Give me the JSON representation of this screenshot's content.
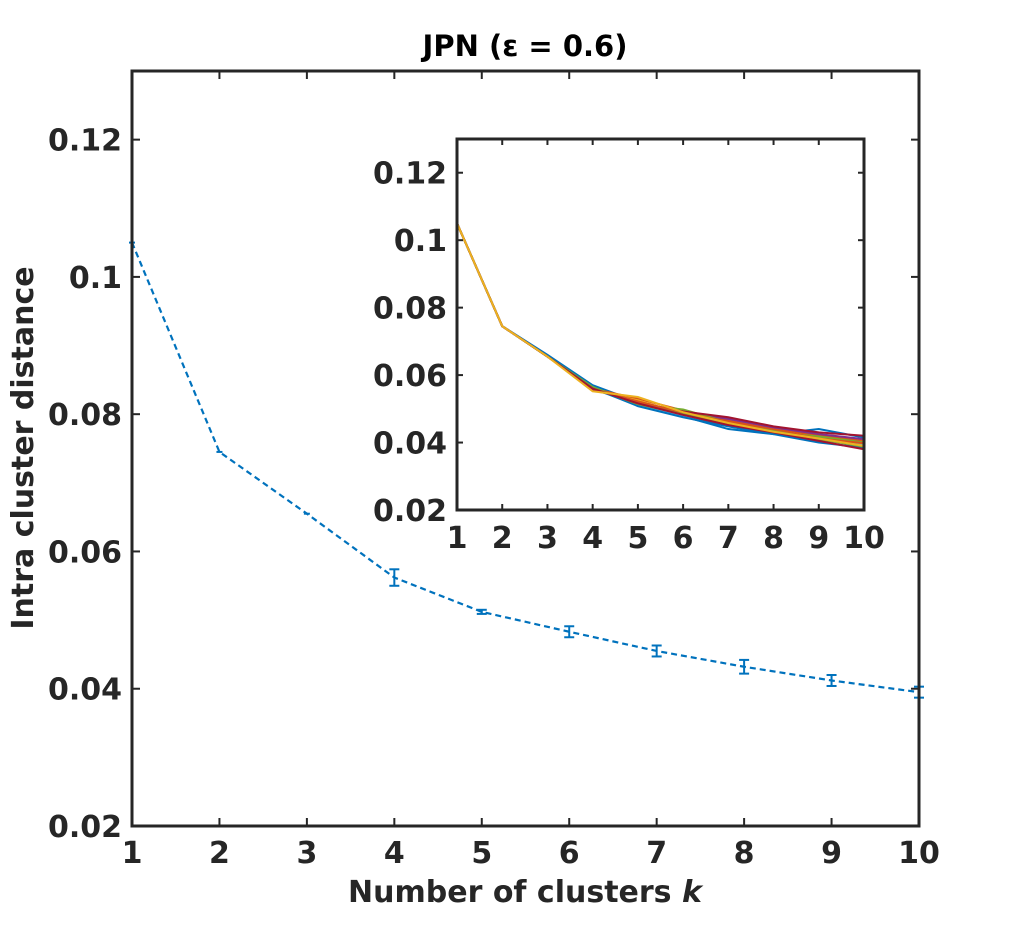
{
  "chart_data": [
    {
      "type": "line",
      "title": "JPN (ε = 0.6)",
      "xlabel": "Number of clusters",
      "xlabel_var": "k",
      "ylabel": "Intra cluster distance",
      "xlim": [
        1,
        10
      ],
      "ylim": [
        0.02,
        0.13
      ],
      "xticks": [
        1,
        2,
        3,
        4,
        5,
        6,
        7,
        8,
        9,
        10
      ],
      "xtick_labels": [
        "1",
        "2",
        "3",
        "4",
        "5",
        "6",
        "7",
        "8",
        "9",
        "10"
      ],
      "yticks": [
        0.02,
        0.04,
        0.06,
        0.08,
        0.1,
        0.12
      ],
      "ytick_labels": [
        "0.02",
        "0.04",
        "0.06",
        "0.08",
        "0.1",
        "0.12"
      ],
      "grid": false,
      "line_style": "dashed",
      "color": "#0072BD",
      "x": [
        1,
        2,
        3,
        4,
        5,
        6,
        7,
        8,
        9,
        10
      ],
      "y": [
        0.105,
        0.0745,
        0.0655,
        0.0562,
        0.0512,
        0.0483,
        0.0455,
        0.0432,
        0.0412,
        0.0395
      ],
      "error": [
        0,
        0,
        0,
        0.0012,
        0.0003,
        0.0008,
        0.0008,
        0.001,
        0.0008,
        0.0008
      ]
    },
    {
      "type": "line",
      "xlim": [
        1,
        10
      ],
      "ylim": [
        0.02,
        0.13
      ],
      "xticks": [
        1,
        2,
        3,
        4,
        5,
        6,
        7,
        8,
        9,
        10
      ],
      "xtick_labels": [
        "1",
        "2",
        "3",
        "4",
        "5",
        "6",
        "7",
        "8",
        "9",
        "10"
      ],
      "yticks": [
        0.02,
        0.04,
        0.06,
        0.08,
        0.1,
        0.12
      ],
      "ytick_labels": [
        "0.02",
        "0.04",
        "0.06",
        "0.08",
        "0.1",
        "0.12"
      ],
      "grid": false,
      "x": [
        1,
        2,
        3,
        4,
        5,
        6,
        7,
        8,
        9,
        10
      ],
      "series": [
        {
          "color": "#0072BD",
          "values": [
            0.105,
            0.0745,
            0.066,
            0.057,
            0.052,
            0.0478,
            0.044,
            0.0425,
            0.044,
            0.0415
          ]
        },
        {
          "color": "#D95319",
          "values": [
            0.105,
            0.0745,
            0.0655,
            0.056,
            0.053,
            0.0495,
            0.0465,
            0.044,
            0.042,
            0.0405
          ]
        },
        {
          "color": "#EDB120",
          "values": [
            0.105,
            0.0745,
            0.0655,
            0.0555,
            0.0525,
            0.0485,
            0.0455,
            0.0435,
            0.0415,
            0.0395
          ]
        },
        {
          "color": "#7E2F8E",
          "values": [
            0.105,
            0.0745,
            0.0655,
            0.0562,
            0.0515,
            0.049,
            0.047,
            0.0445,
            0.0425,
            0.041
          ]
        },
        {
          "color": "#77AC30",
          "values": [
            0.105,
            0.0745,
            0.0655,
            0.0565,
            0.0512,
            0.0498,
            0.046,
            0.043,
            0.0418,
            0.04
          ]
        },
        {
          "color": "#4DBEEE",
          "values": [
            0.105,
            0.0745,
            0.0655,
            0.056,
            0.051,
            0.048,
            0.045,
            0.0428,
            0.0408,
            0.0392
          ]
        },
        {
          "color": "#A2142F",
          "values": [
            0.105,
            0.0745,
            0.0655,
            0.0558,
            0.0518,
            0.0492,
            0.0475,
            0.0448,
            0.043,
            0.042
          ]
        },
        {
          "color": "#0072BD",
          "values": [
            0.105,
            0.0745,
            0.0655,
            0.0562,
            0.0508,
            0.0475,
            0.0448,
            0.0425,
            0.04,
            0.0385
          ]
        },
        {
          "color": "#D95319",
          "values": [
            0.105,
            0.0745,
            0.0655,
            0.056,
            0.0522,
            0.0488,
            0.0462,
            0.0438,
            0.0412,
            0.0398
          ]
        },
        {
          "color": "#77AC30",
          "values": [
            0.105,
            0.0745,
            0.0655,
            0.0562,
            0.0514,
            0.0484,
            0.0456,
            0.0434,
            0.041,
            0.0388
          ]
        },
        {
          "color": "#A2142F",
          "values": [
            0.105,
            0.0745,
            0.0655,
            0.056,
            0.0516,
            0.0482,
            0.0452,
            0.043,
            0.0405,
            0.038
          ]
        },
        {
          "color": "#EDB120",
          "values": [
            0.105,
            0.0745,
            0.0655,
            0.0552,
            0.0535,
            0.049,
            0.0458,
            0.0432,
            0.0412,
            0.039
          ]
        }
      ]
    }
  ]
}
